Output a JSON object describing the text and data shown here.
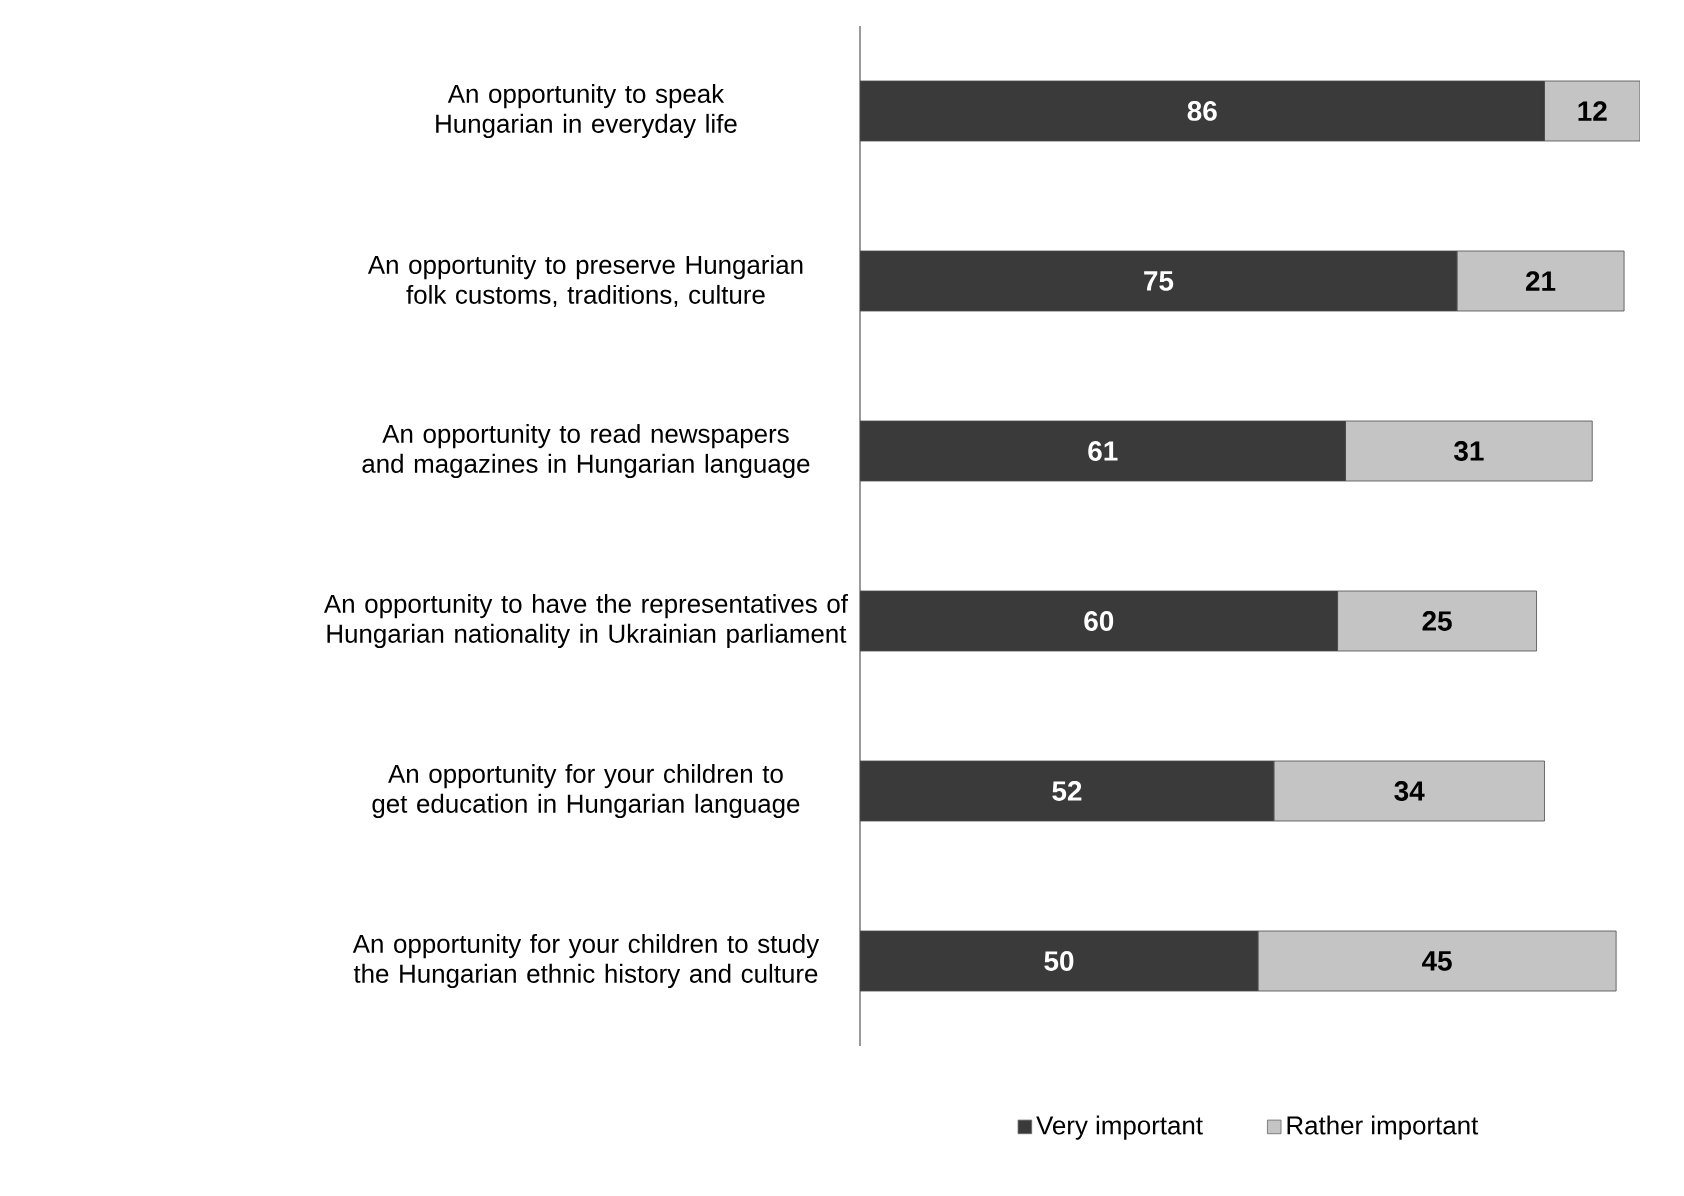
{
  "chart_data": {
    "type": "bar",
    "orientation": "horizontal",
    "stacked": true,
    "data_labels": true,
    "legend": "bottom",
    "tick_labels": "y",
    "categories": [
      "An opportunity to speak Hungarian in everyday life",
      "An opportunity to preserve Hungarian folk customs, traditions, culture",
      "An opportunity to read newspapers and magazines in Hungarian language",
      "An opportunity to have the representatives of Hungarian nationality in Ukrainian parliament",
      "An opportunity for your children to get education in Hungarian language",
      "An opportunity for your children to study the Hungarian ethnic history and culture"
    ],
    "series": [
      {
        "name": "Very important",
        "color": "#3a3a3a",
        "values": [
          86,
          75,
          61,
          60,
          52,
          50
        ]
      },
      {
        "name": "Rather important",
        "color": "#c4c4c4",
        "values": [
          12,
          21,
          31,
          25,
          34,
          45
        ]
      }
    ]
  }
}
